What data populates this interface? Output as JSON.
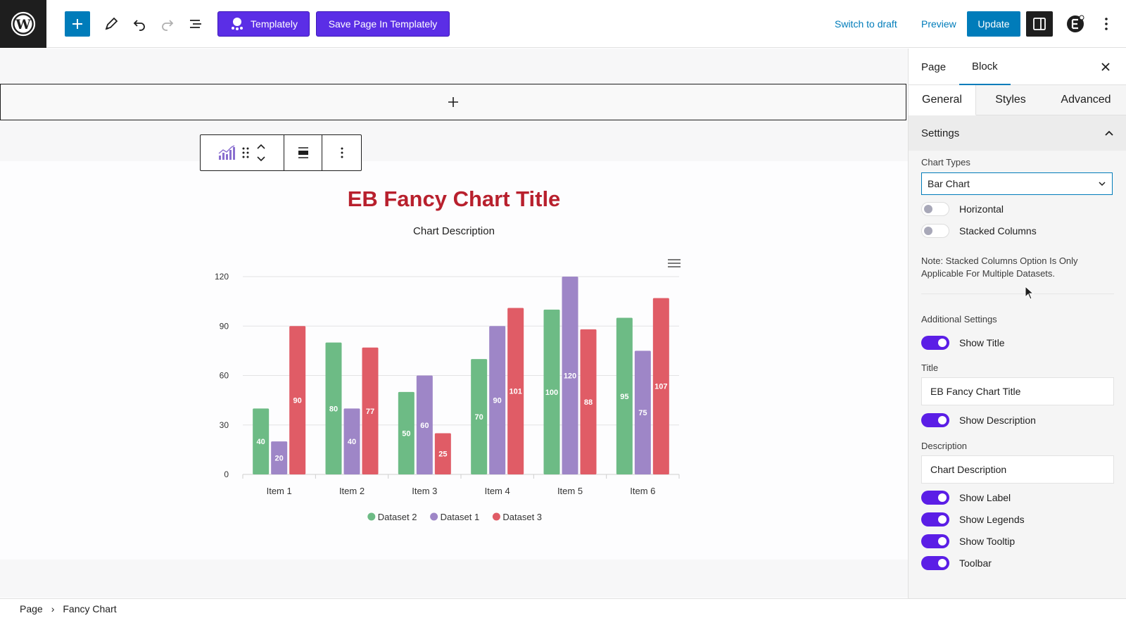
{
  "topbar": {
    "templately_label": "Templately",
    "save_templately_label": "Save Page In Templately",
    "switch_draft_label": "Switch to draft",
    "preview_label": "Preview",
    "update_label": "Update"
  },
  "chart_data": {
    "type": "bar",
    "title": "EB Fancy Chart Title",
    "description": "Chart Description",
    "categories": [
      "Item 1",
      "Item 2",
      "Item 3",
      "Item 4",
      "Item 5",
      "Item 6"
    ],
    "ylim": [
      0,
      120
    ],
    "yticks": [
      0,
      30,
      60,
      90,
      120
    ],
    "grid": true,
    "legend_position": "bottom",
    "series": [
      {
        "name": "Dataset 2",
        "color": "#6dbb85",
        "values": [
          40,
          80,
          50,
          70,
          100,
          95
        ]
      },
      {
        "name": "Dataset 1",
        "color": "#9e86c7",
        "values": [
          20,
          40,
          60,
          90,
          120,
          75
        ]
      },
      {
        "name": "Dataset 3",
        "color": "#e05c66",
        "values": [
          90,
          77,
          25,
          101,
          88,
          107
        ]
      }
    ]
  },
  "sidebar": {
    "tabs": [
      "Page",
      "Block"
    ],
    "active_tab": "Block",
    "subtabs": [
      "General",
      "Styles",
      "Advanced"
    ],
    "active_subtab": "General",
    "panel_title": "Settings",
    "chart_types_label": "Chart Types",
    "chart_type_value": "Bar Chart",
    "horizontal_label": "Horizontal",
    "stacked_label": "Stacked Columns",
    "note": "Note: Stacked Columns Option Is Only Applicable For Multiple Datasets.",
    "additional_label": "Additional Settings",
    "show_title_label": "Show Title",
    "title_label": "Title",
    "title_value": "EB Fancy Chart Title",
    "show_desc_label": "Show Description",
    "desc_label": "Description",
    "desc_value": "Chart Description",
    "show_label_label": "Show Label",
    "show_legends_label": "Show Legends",
    "show_tooltip_label": "Show Tooltip",
    "toolbar_label": "Toolbar"
  },
  "breadcrumb": {
    "root": "Page",
    "current": "Fancy Chart"
  }
}
